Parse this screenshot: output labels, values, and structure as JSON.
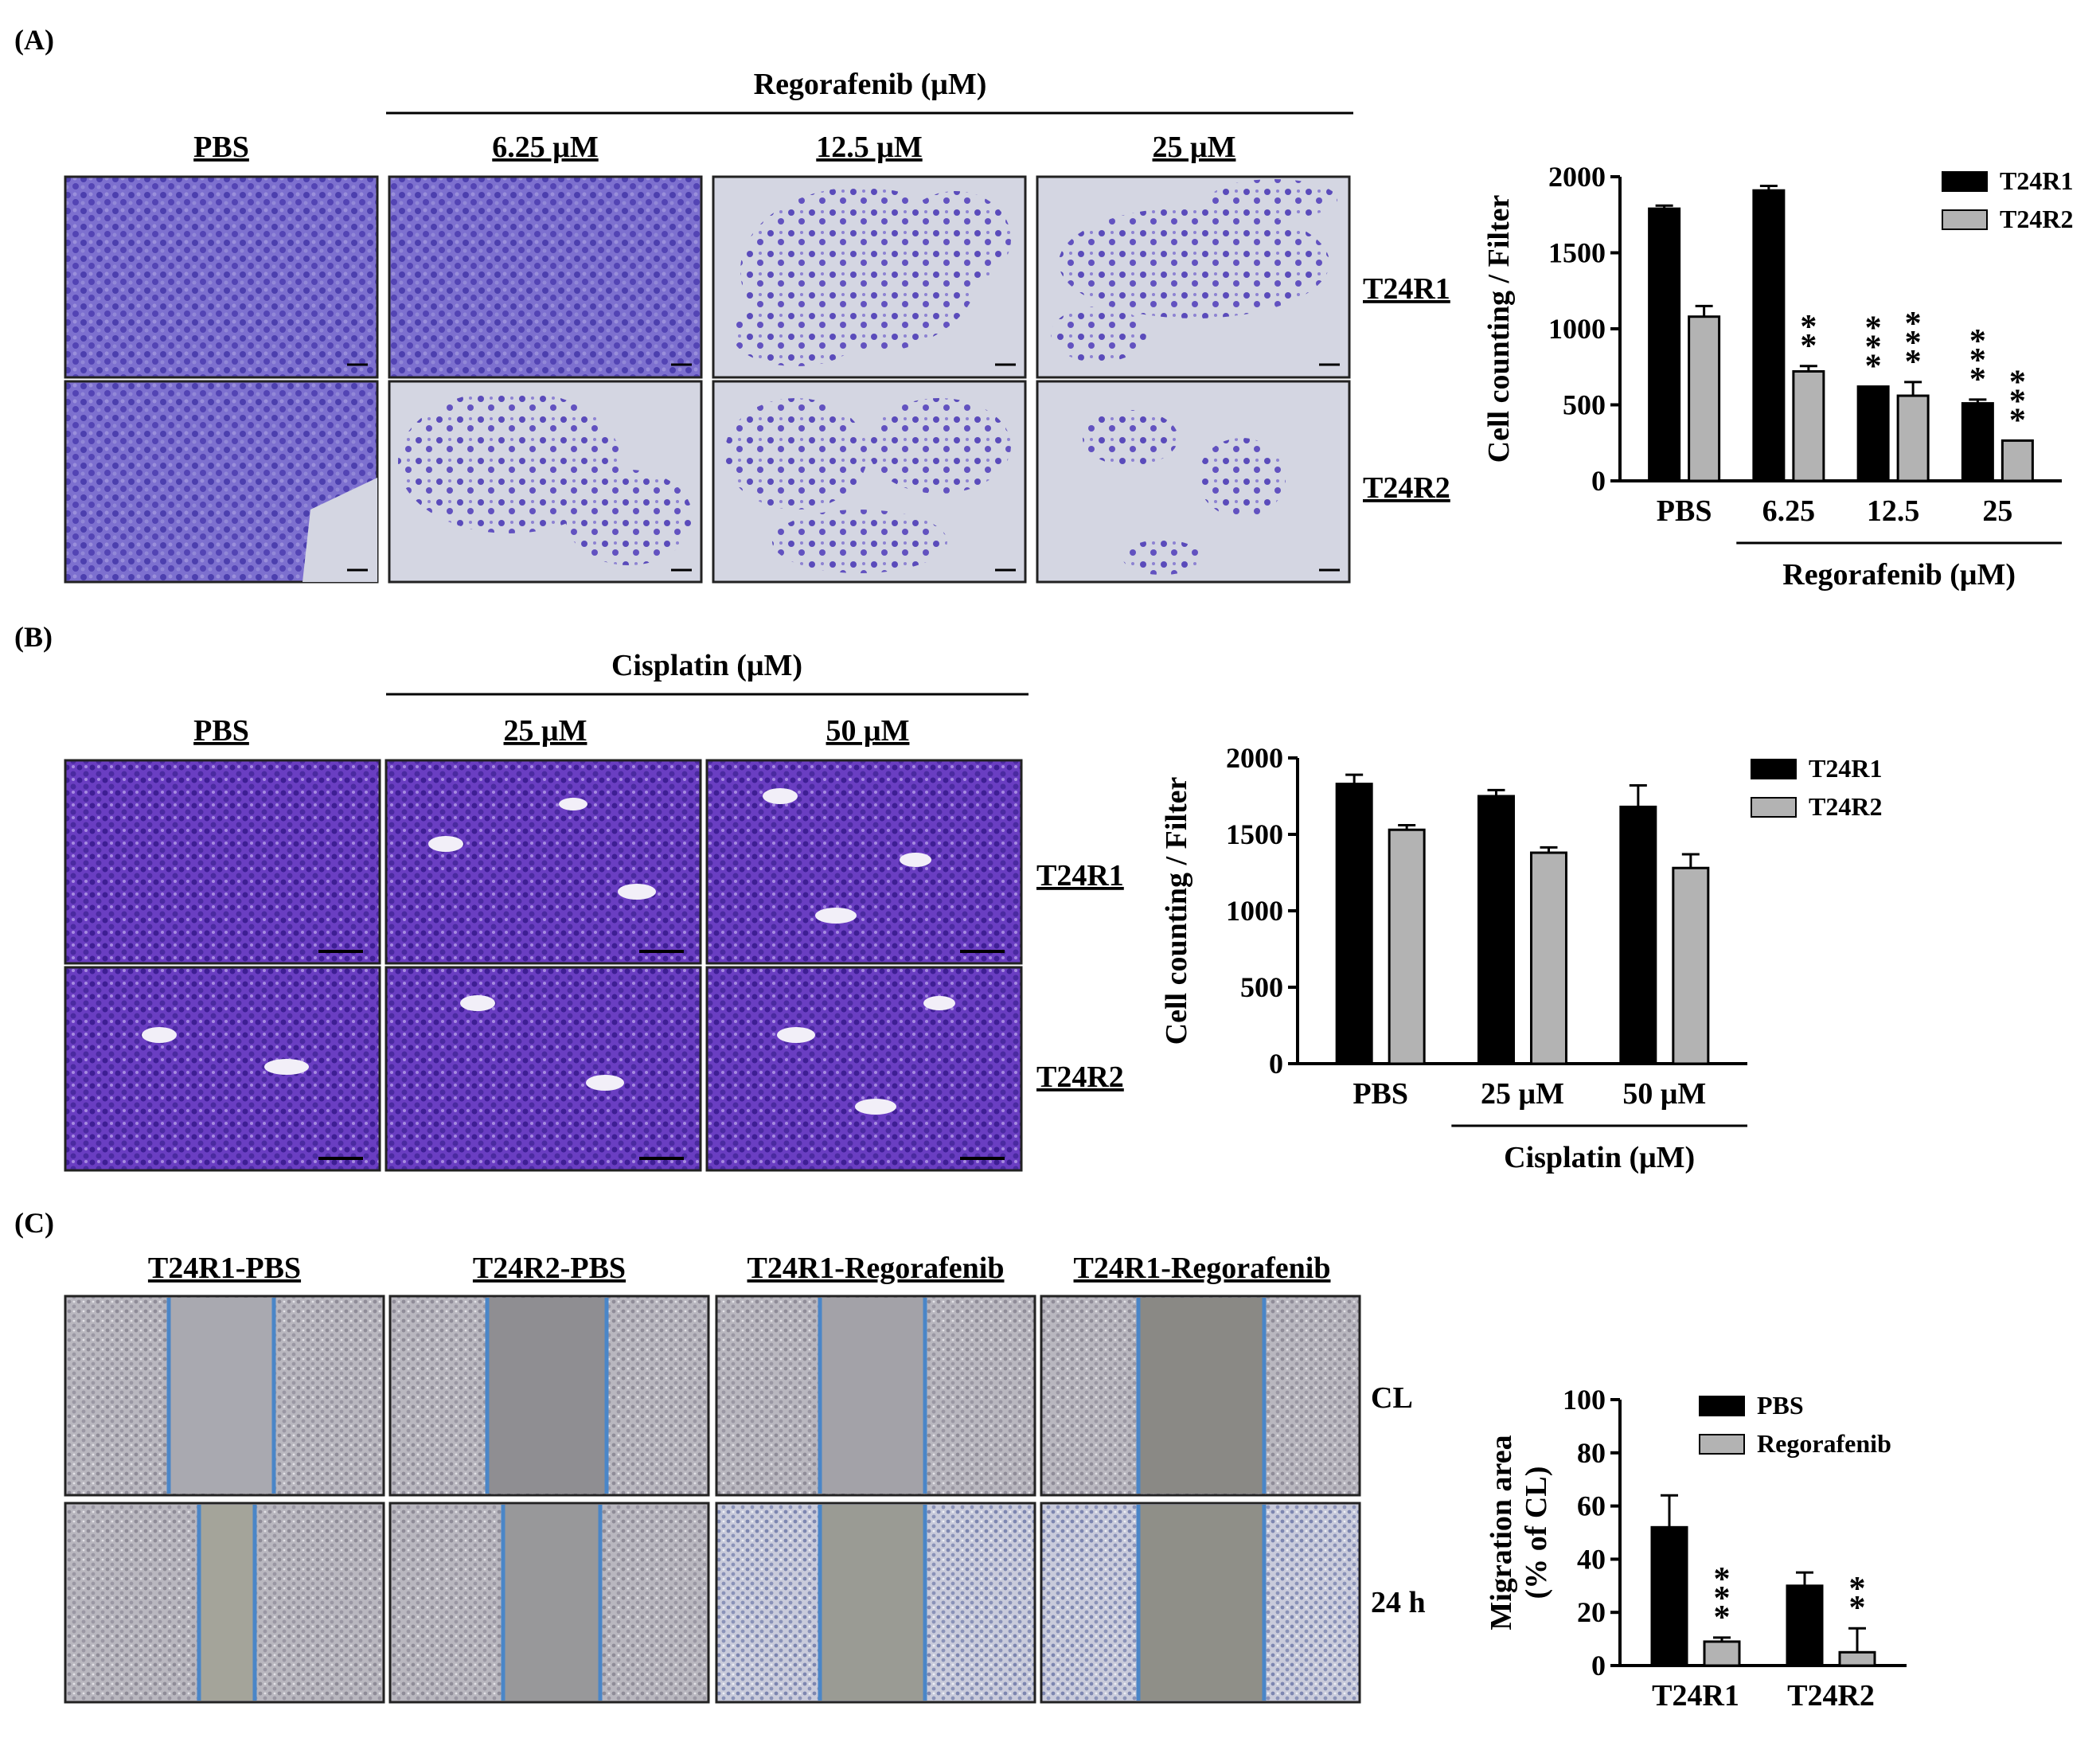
{
  "panels": {
    "A": {
      "label": "(A)",
      "drug_header": "Regorafenib (μM)",
      "columns": [
        "PBS",
        "6.25 μM",
        "12.5 μM",
        "25 μM"
      ],
      "rows": [
        "T24R1",
        "T24R2"
      ]
    },
    "B": {
      "label": "(B)",
      "drug_header": "Cisplatin (μM)",
      "columns": [
        "PBS",
        "25 μM",
        "50 μM"
      ],
      "rows": [
        "T24R1",
        "T24R2"
      ]
    },
    "C": {
      "label": "(C)",
      "columns": [
        "T24R1-PBS",
        "T24R2-PBS",
        "T24R1-Regorafenib",
        "T24R1-Regorafenib"
      ],
      "rows": [
        "CL",
        "24 h"
      ]
    }
  },
  "colors": {
    "dark_bar": "#000000",
    "light_bar": "#b3b3b3",
    "stain": "#5b4dbf",
    "scratch_line": "#4a86c8"
  },
  "chart_data": [
    {
      "type": "bar",
      "panel": "A",
      "categories": [
        "PBS",
        "6.25",
        "12.5",
        "25"
      ],
      "series": [
        {
          "name": "T24R1",
          "values": [
            1790,
            1910,
            620,
            510
          ],
          "errors": [
            20,
            30,
            0,
            25
          ],
          "stars": [
            "",
            "",
            "***",
            "***"
          ]
        },
        {
          "name": "T24R2",
          "values": [
            1080,
            720,
            560,
            265
          ],
          "errors": [
            70,
            35,
            90,
            0
          ],
          "stars": [
            "",
            "**",
            "***",
            "***"
          ]
        }
      ],
      "ylabel": "Cell counting / Filter",
      "xgroup_label": "Regorafenib (μM)",
      "ylim": [
        0,
        2000
      ],
      "yticks": [
        "0",
        "500",
        "1000",
        "1500",
        "2000"
      ]
    },
    {
      "type": "bar",
      "panel": "B",
      "categories": [
        "PBS",
        "25 μM",
        "50 μM"
      ],
      "series": [
        {
          "name": "T24R1",
          "values": [
            1830,
            1750,
            1680
          ],
          "errors": [
            60,
            40,
            140
          ],
          "stars": [
            "",
            "",
            ""
          ]
        },
        {
          "name": "T24R2",
          "values": [
            1530,
            1380,
            1280
          ],
          "errors": [
            30,
            35,
            90
          ],
          "stars": [
            "",
            "",
            ""
          ]
        }
      ],
      "ylabel": "Cell counting / Filter",
      "xgroup_label": "Cisplatin (μM)",
      "ylim": [
        0,
        2000
      ],
      "yticks": [
        "0",
        "500",
        "1000",
        "1500",
        "2000"
      ]
    },
    {
      "type": "bar",
      "panel": "C",
      "categories": [
        "T24R1",
        "T24R2"
      ],
      "series": [
        {
          "name": "PBS",
          "values": [
            52,
            30
          ],
          "errors": [
            12,
            5
          ],
          "stars": [
            "",
            ""
          ]
        },
        {
          "name": "Regorafenib",
          "values": [
            9,
            5
          ],
          "errors": [
            1.5,
            9
          ],
          "stars": [
            "***",
            "**"
          ]
        }
      ],
      "ylabel": "Migration area",
      "ylabel2": "(% of CL)",
      "ylim": [
        0,
        100
      ],
      "yticks": [
        "0",
        "20",
        "40",
        "60",
        "80",
        "100"
      ]
    }
  ]
}
